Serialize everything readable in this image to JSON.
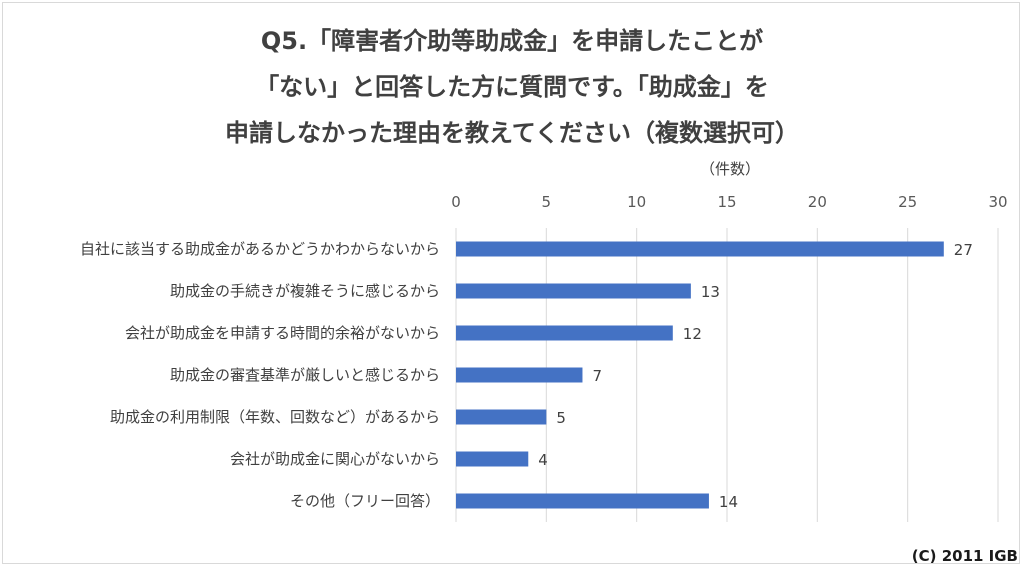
{
  "chart_data": {
    "type": "bar",
    "orientation": "horizontal",
    "title_lines": [
      "Q5.「障害者介助等助成金」を申請したことが",
      "「ない」と回答した方に質問です。「助成金」を",
      "申請しなかった理由を教えてください（複数選択可）"
    ],
    "unit_label": "（件数）",
    "categories": [
      "自社に該当する助成金があるかどうかわからないから",
      "助成金の手続きが複雑そうに感じるから",
      "会社が助成金を申請する時間的余裕がないから",
      "助成金の審査基準が厳しいと感じるから",
      "助成金の利用制限（年数、回数など）があるから",
      "会社が助成金に関心がないから",
      "その他（フリー回答）"
    ],
    "values": [
      27,
      13,
      12,
      7,
      5,
      4,
      14
    ],
    "xlim": [
      0,
      30
    ],
    "ticks": [
      0,
      5,
      10,
      15,
      20,
      25,
      30
    ],
    "grid": true,
    "bar_color": "#4472c4"
  },
  "credit": "(C) 2011 IGB"
}
